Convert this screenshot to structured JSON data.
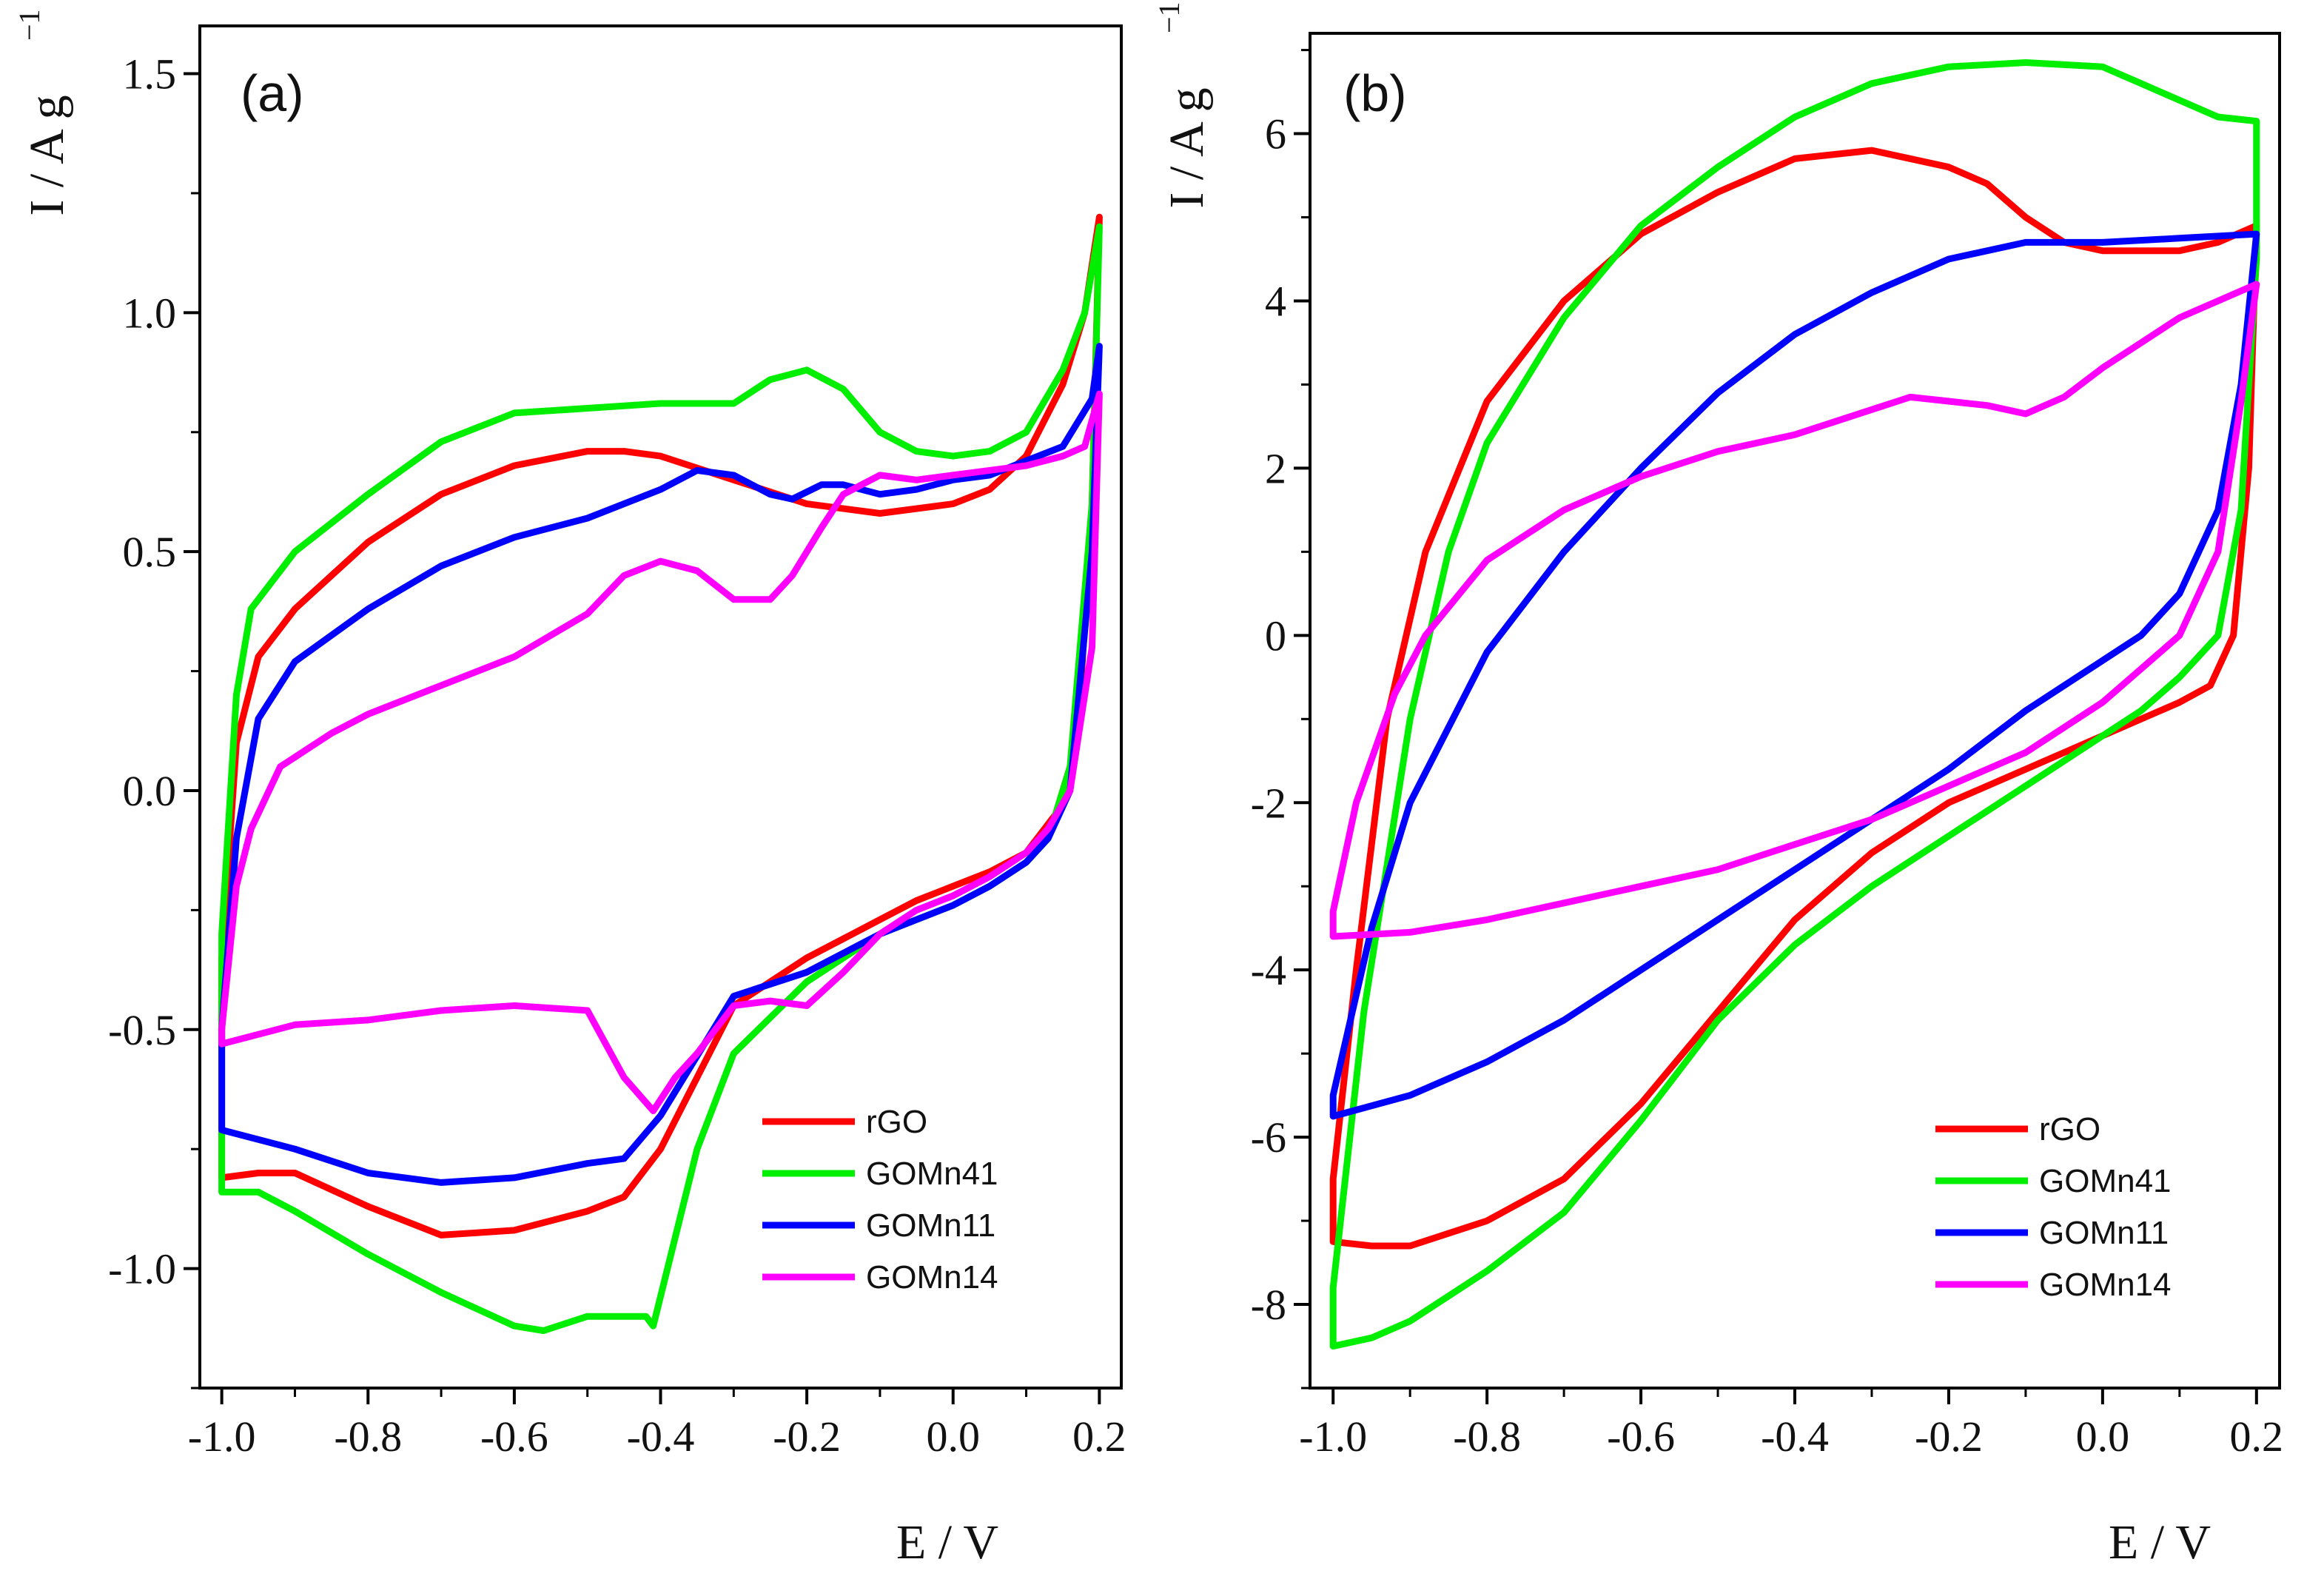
{
  "chart_data": [
    {
      "type": "line",
      "panel_label": "(a)",
      "xlabel": "E / V",
      "ylabel": "I / A g",
      "ylabel_superscript": "−1",
      "xlim": [
        -1.03,
        0.23
      ],
      "ylim": [
        -1.25,
        1.6
      ],
      "xticks": [
        -1.0,
        -0.8,
        -0.6,
        -0.4,
        -0.2,
        0.0,
        0.2
      ],
      "xtick_labels": [
        "-1.0",
        "-0.8",
        "-0.6",
        "-0.4",
        "-0.2",
        "0.0",
        "0.2"
      ],
      "yticks": [
        -1.0,
        -0.5,
        0.0,
        0.5,
        1.0,
        1.5
      ],
      "ytick_labels": [
        "-1.0",
        "-0.5",
        "0.0",
        "0.5",
        "1.0",
        "1.5"
      ],
      "legend_position": "bottom-right",
      "series": [
        {
          "name": "rGO",
          "color": "#ff0000",
          "x": [
            -1.0,
            -0.98,
            -0.95,
            -0.9,
            -0.8,
            -0.7,
            -0.6,
            -0.5,
            -0.45,
            -0.4,
            -0.3,
            -0.2,
            -0.1,
            0.0,
            0.05,
            0.1,
            0.15,
            0.18,
            0.195,
            0.2,
            0.19,
            0.17,
            0.14,
            0.1,
            0.05,
            0.0,
            -0.05,
            -0.1,
            -0.2,
            -0.3,
            -0.4,
            -0.45,
            -0.5,
            -0.6,
            -0.7,
            -0.8,
            -0.9,
            -0.95,
            -1.0,
            -1.0
          ],
          "y": [
            -0.35,
            0.1,
            0.28,
            0.38,
            0.52,
            0.62,
            0.68,
            0.71,
            0.71,
            0.7,
            0.65,
            0.6,
            0.58,
            0.6,
            0.63,
            0.7,
            0.85,
            1.0,
            1.15,
            1.2,
            0.6,
            0.1,
            -0.05,
            -0.13,
            -0.17,
            -0.2,
            -0.23,
            -0.27,
            -0.35,
            -0.45,
            -0.75,
            -0.85,
            -0.88,
            -0.92,
            -0.93,
            -0.87,
            -0.8,
            -0.8,
            -0.81,
            -0.35
          ]
        },
        {
          "name": "GOMn41",
          "color": "#00ee00",
          "x": [
            -1.0,
            -0.98,
            -0.96,
            -0.9,
            -0.8,
            -0.7,
            -0.6,
            -0.5,
            -0.4,
            -0.3,
            -0.25,
            -0.2,
            -0.15,
            -0.1,
            -0.05,
            0.0,
            0.05,
            0.1,
            0.15,
            0.18,
            0.2,
            0.19,
            0.16,
            0.13,
            0.1,
            0.05,
            0.0,
            -0.1,
            -0.2,
            -0.3,
            -0.35,
            -0.41,
            -0.42,
            -0.5,
            -0.56,
            -0.6,
            -0.7,
            -0.8,
            -0.9,
            -0.95,
            -1.0,
            -1.0
          ],
          "y": [
            -0.3,
            0.2,
            0.38,
            0.5,
            0.62,
            0.73,
            0.79,
            0.8,
            0.81,
            0.81,
            0.86,
            0.88,
            0.84,
            0.75,
            0.71,
            0.7,
            0.71,
            0.75,
            0.88,
            1.0,
            1.18,
            0.6,
            0.05,
            -0.1,
            -0.15,
            -0.2,
            -0.24,
            -0.3,
            -0.4,
            -0.55,
            -0.75,
            -1.12,
            -1.1,
            -1.1,
            -1.13,
            -1.12,
            -1.05,
            -0.97,
            -0.88,
            -0.84,
            -0.84,
            -0.3
          ]
        },
        {
          "name": "GOMn11",
          "color": "#0000ff",
          "x": [
            -1.0,
            -0.98,
            -0.95,
            -0.9,
            -0.8,
            -0.7,
            -0.6,
            -0.5,
            -0.45,
            -0.4,
            -0.35,
            -0.3,
            -0.25,
            -0.22,
            -0.18,
            -0.15,
            -0.1,
            -0.05,
            0.0,
            0.05,
            0.1,
            0.15,
            0.19,
            0.2,
            0.19,
            0.16,
            0.13,
            0.1,
            0.05,
            0.0,
            -0.1,
            -0.2,
            -0.3,
            -0.4,
            -0.45,
            -0.5,
            -0.6,
            -0.7,
            -0.8,
            -0.9,
            -1.0,
            -1.0
          ],
          "y": [
            -0.5,
            -0.1,
            0.15,
            0.27,
            0.38,
            0.47,
            0.53,
            0.57,
            0.6,
            0.63,
            0.67,
            0.66,
            0.62,
            0.61,
            0.64,
            0.64,
            0.62,
            0.63,
            0.65,
            0.66,
            0.69,
            0.72,
            0.82,
            0.93,
            0.5,
            0.0,
            -0.1,
            -0.15,
            -0.2,
            -0.24,
            -0.3,
            -0.38,
            -0.43,
            -0.68,
            -0.77,
            -0.78,
            -0.81,
            -0.82,
            -0.8,
            -0.75,
            -0.71,
            -0.5
          ]
        },
        {
          "name": "GOMn14",
          "color": "#ff00ff",
          "x": [
            -1.0,
            -0.98,
            -0.96,
            -0.92,
            -0.85,
            -0.8,
            -0.7,
            -0.6,
            -0.5,
            -0.45,
            -0.4,
            -0.35,
            -0.3,
            -0.25,
            -0.22,
            -0.18,
            -0.15,
            -0.1,
            -0.05,
            0.0,
            0.05,
            0.1,
            0.15,
            0.18,
            0.2,
            0.19,
            0.16,
            0.13,
            0.1,
            0.05,
            0.0,
            -0.05,
            -0.1,
            -0.15,
            -0.2,
            -0.25,
            -0.3,
            -0.35,
            -0.38,
            -0.41,
            -0.45,
            -0.5,
            -0.6,
            -0.7,
            -0.8,
            -0.9,
            -1.0,
            -1.0
          ],
          "y": [
            -0.5,
            -0.2,
            -0.08,
            0.05,
            0.12,
            0.16,
            0.22,
            0.28,
            0.37,
            0.45,
            0.48,
            0.46,
            0.4,
            0.4,
            0.45,
            0.55,
            0.62,
            0.66,
            0.65,
            0.66,
            0.67,
            0.68,
            0.7,
            0.72,
            0.83,
            0.3,
            0.0,
            -0.08,
            -0.13,
            -0.18,
            -0.22,
            -0.25,
            -0.3,
            -0.38,
            -0.45,
            -0.44,
            -0.45,
            -0.55,
            -0.6,
            -0.67,
            -0.6,
            -0.46,
            -0.45,
            -0.46,
            -0.48,
            -0.49,
            -0.53,
            -0.5
          ]
        }
      ]
    },
    {
      "type": "line",
      "panel_label": "(b)",
      "xlabel": "E / V",
      "ylabel": "I / A g",
      "ylabel_superscript": "−1",
      "xlim": [
        -1.03,
        0.23
      ],
      "ylim": [
        -9.0,
        7.2
      ],
      "xticks": [
        -1.0,
        -0.8,
        -0.6,
        -0.4,
        -0.2,
        0.0,
        0.2
      ],
      "xtick_labels": [
        "-1.0",
        "-0.8",
        "-0.6",
        "-0.4",
        "-0.2",
        "0.0",
        "0.2"
      ],
      "yticks": [
        -8,
        -6,
        -4,
        -2,
        0,
        2,
        4,
        6
      ],
      "ytick_labels": [
        "-8",
        "-6",
        "-4",
        "-2",
        "0",
        "2",
        "4",
        "6"
      ],
      "legend_position": "bottom-right",
      "series": [
        {
          "name": "rGO",
          "color": "#ff0000",
          "x": [
            -1.0,
            -0.97,
            -0.93,
            -0.88,
            -0.8,
            -0.7,
            -0.6,
            -0.5,
            -0.4,
            -0.3,
            -0.2,
            -0.15,
            -0.1,
            -0.05,
            0.0,
            0.05,
            0.1,
            0.15,
            0.2,
            0.19,
            0.17,
            0.14,
            0.1,
            0.05,
            0.0,
            -0.05,
            -0.1,
            -0.2,
            -0.3,
            -0.4,
            -0.5,
            -0.6,
            -0.7,
            -0.8,
            -0.9,
            -0.95,
            -1.0,
            -1.0
          ],
          "y": [
            -6.5,
            -4.0,
            -1.0,
            1.0,
            2.8,
            4.0,
            4.8,
            5.3,
            5.7,
            5.8,
            5.6,
            5.4,
            5.0,
            4.7,
            4.6,
            4.6,
            4.6,
            4.7,
            4.9,
            2.0,
            0.0,
            -0.6,
            -0.8,
            -1.0,
            -1.2,
            -1.4,
            -1.6,
            -2.0,
            -2.6,
            -3.4,
            -4.5,
            -5.6,
            -6.5,
            -7.0,
            -7.3,
            -7.3,
            -7.25,
            -6.5
          ]
        },
        {
          "name": "GOMn41",
          "color": "#00ee00",
          "x": [
            -1.0,
            -0.96,
            -0.9,
            -0.85,
            -0.8,
            -0.7,
            -0.6,
            -0.5,
            -0.4,
            -0.3,
            -0.2,
            -0.1,
            0.0,
            0.05,
            0.1,
            0.15,
            0.2,
            0.2,
            0.18,
            0.15,
            0.1,
            0.05,
            0.0,
            -0.05,
            -0.1,
            -0.2,
            -0.3,
            -0.4,
            -0.5,
            -0.6,
            -0.7,
            -0.8,
            -0.9,
            -0.95,
            -1.0,
            -1.0
          ],
          "y": [
            -7.8,
            -4.5,
            -1.0,
            1.0,
            2.3,
            3.8,
            4.9,
            5.6,
            6.2,
            6.6,
            6.8,
            6.85,
            6.8,
            6.6,
            6.4,
            6.2,
            6.15,
            4.5,
            1.5,
            0.0,
            -0.5,
            -0.9,
            -1.2,
            -1.5,
            -1.8,
            -2.4,
            -3.0,
            -3.7,
            -4.6,
            -5.8,
            -6.9,
            -7.6,
            -8.2,
            -8.4,
            -8.5,
            -7.8
          ]
        },
        {
          "name": "GOMn11",
          "color": "#0000ff",
          "x": [
            -1.0,
            -0.95,
            -0.9,
            -0.8,
            -0.7,
            -0.6,
            -0.5,
            -0.4,
            -0.3,
            -0.2,
            -0.1,
            0.0,
            0.1,
            0.2,
            0.18,
            0.15,
            0.1,
            0.05,
            0.0,
            -0.1,
            -0.2,
            -0.3,
            -0.4,
            -0.5,
            -0.6,
            -0.7,
            -0.8,
            -0.9,
            -1.0,
            -1.0
          ],
          "y": [
            -5.5,
            -3.5,
            -2.0,
            -0.2,
            1.0,
            2.0,
            2.9,
            3.6,
            4.1,
            4.5,
            4.7,
            4.7,
            4.75,
            4.8,
            3.0,
            1.5,
            0.5,
            0.0,
            -0.3,
            -0.9,
            -1.6,
            -2.2,
            -2.8,
            -3.4,
            -4.0,
            -4.6,
            -5.1,
            -5.5,
            -5.75,
            -5.5
          ]
        },
        {
          "name": "GOMn14",
          "color": "#ff00ff",
          "x": [
            -1.0,
            -0.97,
            -0.92,
            -0.88,
            -0.8,
            -0.7,
            -0.6,
            -0.5,
            -0.4,
            -0.3,
            -0.25,
            -0.2,
            -0.15,
            -0.1,
            -0.05,
            0.0,
            0.05,
            0.1,
            0.15,
            0.2,
            0.18,
            0.15,
            0.1,
            0.05,
            0.0,
            -0.05,
            -0.1,
            -0.2,
            -0.3,
            -0.4,
            -0.5,
            -0.6,
            -0.7,
            -0.8,
            -0.9,
            -1.0,
            -1.0
          ],
          "y": [
            -3.3,
            -2.0,
            -0.7,
            0.0,
            0.9,
            1.5,
            1.9,
            2.2,
            2.4,
            2.7,
            2.85,
            2.8,
            2.75,
            2.65,
            2.85,
            3.2,
            3.5,
            3.8,
            4.0,
            4.2,
            2.8,
            1.0,
            0.0,
            -0.4,
            -0.8,
            -1.1,
            -1.4,
            -1.8,
            -2.2,
            -2.5,
            -2.8,
            -3.0,
            -3.2,
            -3.4,
            -3.55,
            -3.6,
            -3.3
          ]
        }
      ]
    }
  ]
}
